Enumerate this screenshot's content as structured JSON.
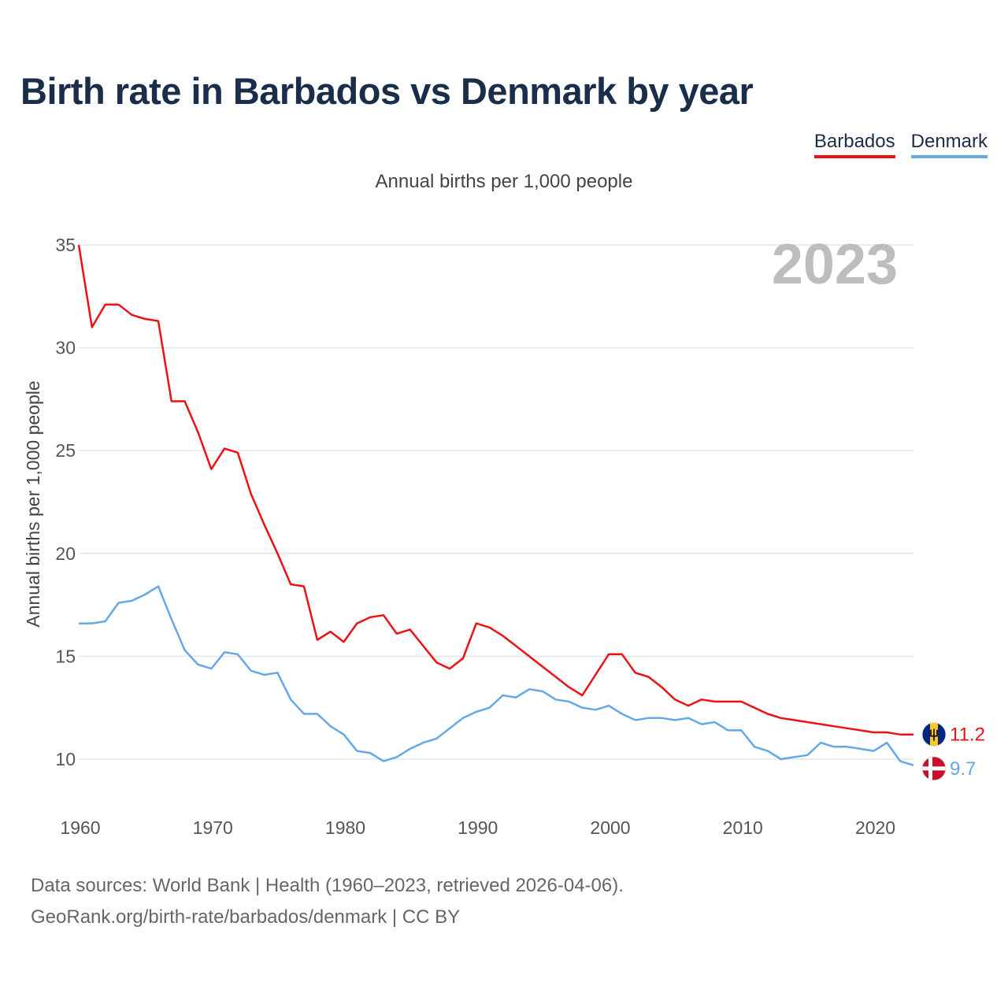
{
  "title": "Birth rate in Barbados vs Denmark by year",
  "subtitle": "Annual births per 1,000 people",
  "legend": [
    {
      "label": "Barbados",
      "color": "#ee1111"
    },
    {
      "label": "Denmark",
      "color": "#64a8e6"
    }
  ],
  "source": {
    "line1": "Data sources: World Bank | Health (1960–2023, retrieved 2026-04-06).",
    "line2": "GeoRank.org/birth-rate/barbados/denmark | CC BY"
  },
  "chart_data": {
    "type": "line",
    "title": "Birth rate in Barbados vs Denmark by year",
    "ylabel": "Annual births per 1,000 people",
    "xlabel": "",
    "xlim": [
      1960,
      2023
    ],
    "ylim": [
      8,
      35
    ],
    "x_ticks": [
      1960,
      1970,
      1980,
      1990,
      2000,
      2010,
      2020
    ],
    "y_ticks": [
      10,
      15,
      20,
      25,
      30,
      35
    ],
    "grid": true,
    "highlight_year": "2023",
    "x": [
      1960,
      1961,
      1962,
      1963,
      1964,
      1965,
      1966,
      1967,
      1968,
      1969,
      1970,
      1971,
      1972,
      1973,
      1974,
      1975,
      1976,
      1977,
      1978,
      1979,
      1980,
      1981,
      1982,
      1983,
      1984,
      1985,
      1986,
      1987,
      1988,
      1989,
      1990,
      1991,
      1992,
      1993,
      1994,
      1995,
      1996,
      1997,
      1998,
      1999,
      2000,
      2001,
      2002,
      2003,
      2004,
      2005,
      2006,
      2007,
      2008,
      2009,
      2010,
      2011,
      2012,
      2013,
      2014,
      2015,
      2016,
      2017,
      2018,
      2019,
      2020,
      2021,
      2022,
      2023
    ],
    "series": [
      {
        "name": "Barbados",
        "color": "#ee1111",
        "end_label": "11.2",
        "values": [
          35.0,
          31.0,
          32.1,
          32.1,
          31.6,
          31.4,
          31.3,
          27.4,
          27.4,
          25.9,
          24.1,
          25.1,
          24.9,
          22.9,
          21.4,
          20.0,
          18.5,
          18.4,
          15.8,
          16.2,
          15.7,
          16.6,
          16.9,
          17.0,
          16.1,
          16.3,
          15.5,
          14.7,
          14.4,
          14.9,
          16.6,
          16.4,
          16.0,
          15.5,
          15.0,
          14.5,
          14.0,
          13.5,
          13.1,
          14.1,
          15.1,
          15.1,
          14.2,
          14.0,
          13.5,
          12.9,
          12.6,
          12.9,
          12.8,
          12.8,
          12.8,
          12.5,
          12.2,
          12.0,
          11.9,
          11.8,
          11.7,
          11.6,
          11.5,
          11.4,
          11.3,
          11.3,
          11.2,
          11.2
        ]
      },
      {
        "name": "Denmark",
        "color": "#64a8e6",
        "end_label": "9.7",
        "values": [
          16.6,
          16.6,
          16.7,
          17.6,
          17.7,
          18.0,
          18.4,
          16.8,
          15.3,
          14.6,
          14.4,
          15.2,
          15.1,
          14.3,
          14.1,
          14.2,
          12.9,
          12.2,
          12.2,
          11.6,
          11.2,
          10.4,
          10.3,
          9.9,
          10.1,
          10.5,
          10.8,
          11.0,
          11.5,
          12.0,
          12.3,
          12.5,
          13.1,
          13.0,
          13.4,
          13.3,
          12.9,
          12.8,
          12.5,
          12.4,
          12.6,
          12.2,
          11.9,
          12.0,
          12.0,
          11.9,
          12.0,
          11.7,
          11.8,
          11.4,
          11.4,
          10.6,
          10.4,
          10.0,
          10.1,
          10.2,
          10.8,
          10.6,
          10.6,
          10.5,
          10.4,
          10.8,
          9.9,
          9.7
        ]
      }
    ]
  }
}
